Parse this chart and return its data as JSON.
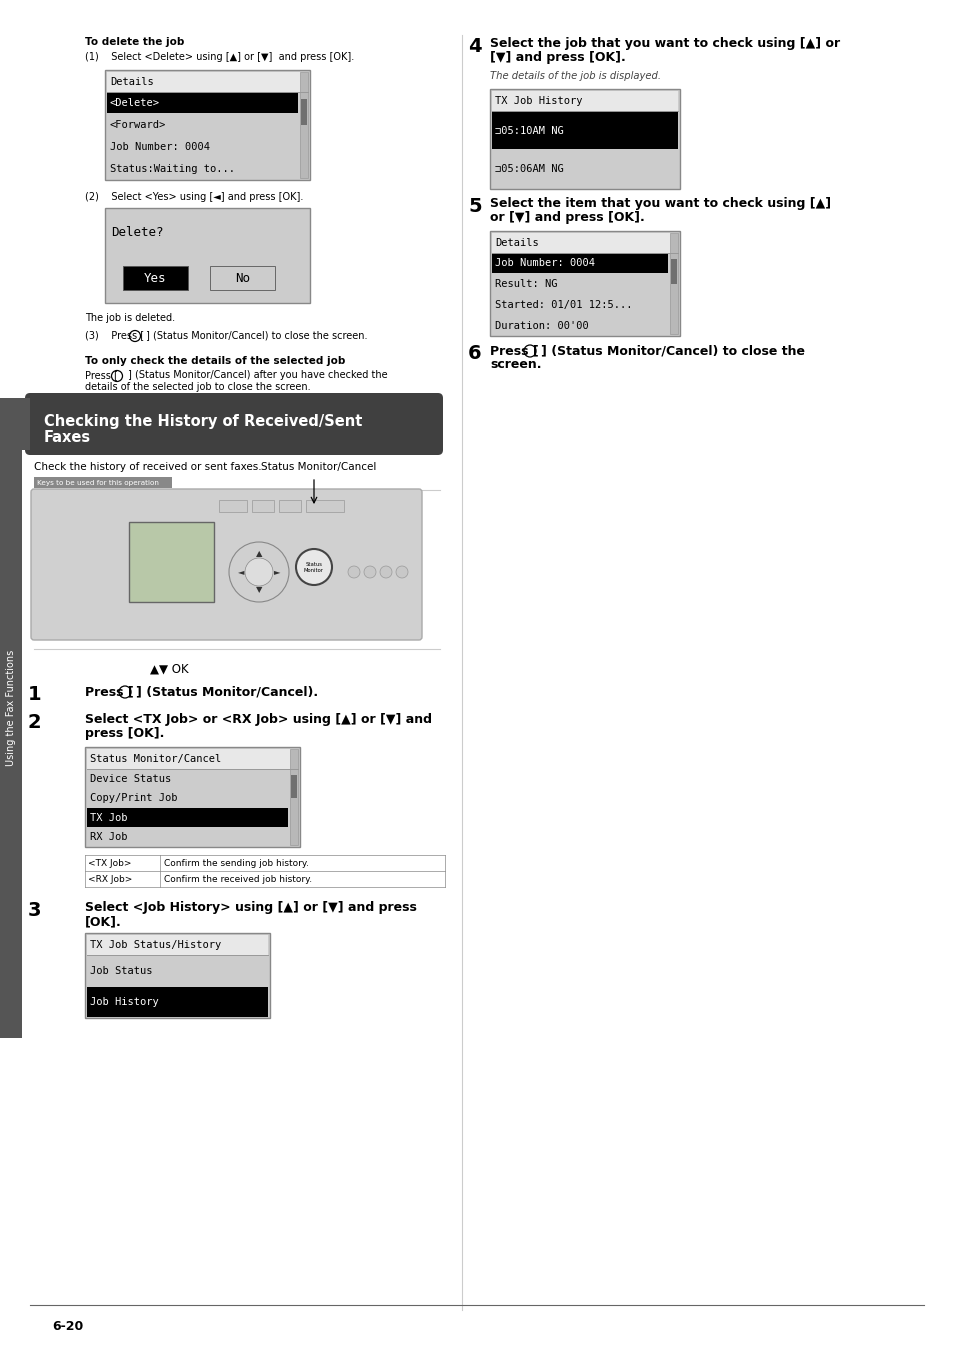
{
  "page_bg": "#ffffff",
  "sidebar_bg": "#555555",
  "sidebar_text": "Using the Fax Functions",
  "section_header_bg": "#404040",
  "page_number": "6-20",
  "content": {
    "to_delete_header": "To delete the job",
    "step1_1": "(1)    Select <Delete> using [▲] or [▼]  and press [OK].",
    "lcd1_title": "Details",
    "lcd1_items": [
      "<Delete>",
      "<Forward>",
      "Job Number: 0004",
      "Status:Waiting to..."
    ],
    "lcd1_selected": 0,
    "step1_2": "(2)    Select <Yes> using [◄] and press [OK].",
    "lcd2_title": "Delete?",
    "lcd2_yes": "Yes",
    "lcd2_no": "No",
    "job_deleted": "The job is deleted.",
    "step1_3a": "(3)    Press [",
    "step1_3b": "] (Status Monitor/Cancel) to close the screen.",
    "to_only_header": "To only check the details of the selected job",
    "to_only_line1a": "Press [",
    "to_only_line1b": "] (Status Monitor/Cancel) after you have checked the",
    "to_only_line2": "details of the selected job to close the screen.",
    "section_title_1": "Checking the History of Received/Sent",
    "section_title_2": "Faxes",
    "intro_text": "Check the history of received or sent faxes.",
    "keys_label": "Keys to be used for this operation",
    "status_monitor_label": "Status Monitor/Cancel",
    "ok_label": "▲▼ OK",
    "step1_a": "Press [",
    "step1_b": "] (Status Monitor/Cancel).",
    "step2_line1": "Select <TX Job> or <RX Job> using [▲] or [▼] and",
    "step2_line2": "press [OK].",
    "lcd_menu_title": "Status Monitor/Cancel",
    "lcd_menu_items": [
      "Device Status",
      "Copy/Print Job",
      "TX Job",
      "RX Job"
    ],
    "lcd_menu_selected": 2,
    "table_rows": [
      [
        "<TX Job>",
        "Confirm the sending job history."
      ],
      [
        "<RX Job>",
        "Confirm the received job history."
      ]
    ],
    "step3_line1": "Select <Job History> using [▲] or [▼] and press",
    "step3_line2": "[OK].",
    "lcd3_title": "TX Job Status/History",
    "lcd3_items": [
      "Job Status",
      "Job History"
    ],
    "lcd3_selected": 1,
    "step4_line1": "Select the job that you want to check using [▲] or",
    "step4_line2": "[▼] and press [OK].",
    "step4_sub": "The details of the job is displayed.",
    "lcd4_title": "TX Job History",
    "lcd4_items": [
      "⊐05:10AM NG",
      "⊐05:06AM NG"
    ],
    "lcd4_selected": 0,
    "step5_line1": "Select the item that you want to check using [▲]",
    "step5_line2": "or [▼] and press [OK].",
    "lcd5_title": "Details",
    "lcd5_items": [
      "Job Number: 0004",
      "Result: NG",
      "Started: 01/01 12:5...",
      "Duration: 00'00"
    ],
    "lcd5_selected": 0,
    "step6_line1a": "Press [",
    "step6_line1b": "] (Status Monitor/Cancel) to close the",
    "step6_line2": "screen."
  }
}
